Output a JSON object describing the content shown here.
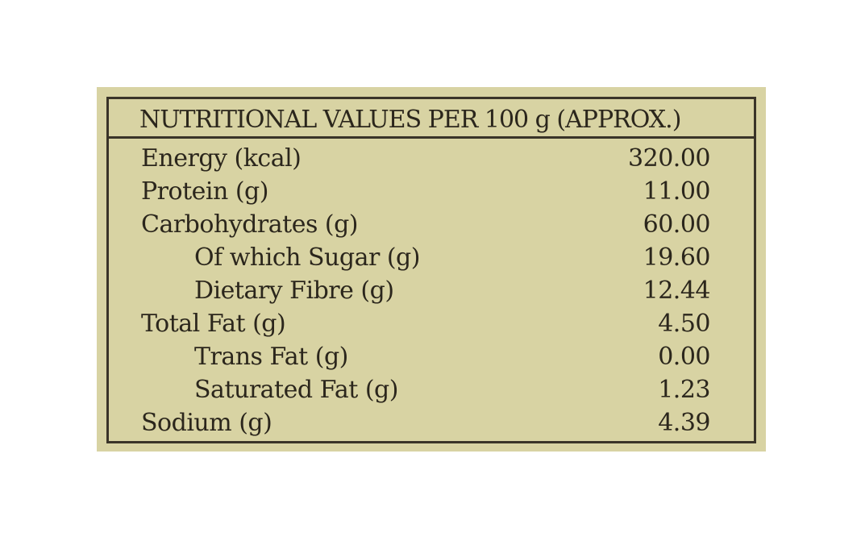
{
  "panel": {
    "title": "NUTRITIONAL VALUES PER 100 g (APPROX.)",
    "rows": [
      {
        "label": "Energy (kcal)",
        "value": "320.00"
      },
      {
        "label": "Protein (g)",
        "value": "11.00"
      },
      {
        "label": "Carbohydrates (g)",
        "value": "60.00"
      },
      {
        "label": "Of which Sugar (g)",
        "value": "19.60"
      },
      {
        "label": "Dietary Fibre (g)",
        "value": "12.44"
      },
      {
        "label": "Total Fat (g)",
        "value": "4.50"
      },
      {
        "label": "Trans Fat (g)",
        "value": "0.00"
      },
      {
        "label": "Saturated Fat (g)",
        "value": "1.23"
      },
      {
        "label": "Sodium (g)",
        "value": "4.39"
      }
    ]
  },
  "colors": {
    "background": "#d8d3a3",
    "text": "#2b261c",
    "border": "#3a3428"
  }
}
